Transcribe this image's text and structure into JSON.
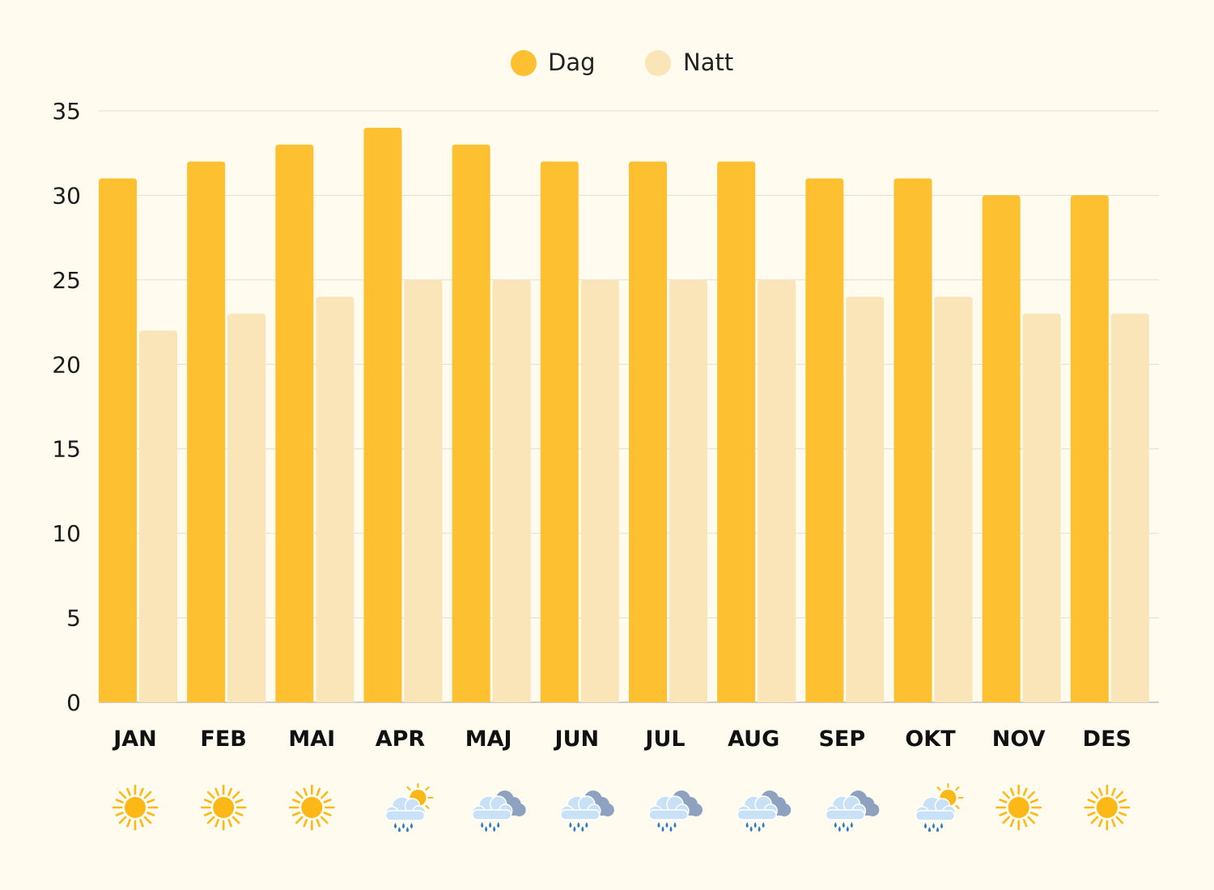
{
  "chart_data": {
    "type": "bar",
    "categories": [
      "JAN",
      "FEB",
      "MAI",
      "APR",
      "MAJ",
      "JUN",
      "JUL",
      "AUG",
      "SEP",
      "OKT",
      "NOV",
      "DES"
    ],
    "series": [
      {
        "name": "Dag",
        "color": "#fdc030",
        "values": [
          31,
          32,
          33,
          34,
          33,
          32,
          32,
          32,
          31,
          31,
          30,
          30
        ]
      },
      {
        "name": "Natt",
        "color": "#f9e5b8",
        "values": [
          22,
          23,
          24,
          25,
          25,
          25,
          25,
          25,
          24,
          24,
          23,
          23
        ]
      }
    ],
    "ylim": [
      0,
      35
    ],
    "yticks": [
      0,
      5,
      10,
      15,
      20,
      25,
      30,
      35
    ],
    "grid": true,
    "legend_position": "top-center",
    "weather_icons": [
      "sun-icon",
      "sun-icon",
      "sun-icon",
      "rain-sun-icon",
      "rain-cloud-icon",
      "rain-cloud-icon",
      "rain-cloud-icon",
      "rain-cloud-icon",
      "rain-cloud-icon",
      "rain-sun-icon",
      "sun-icon",
      "sun-icon"
    ]
  }
}
